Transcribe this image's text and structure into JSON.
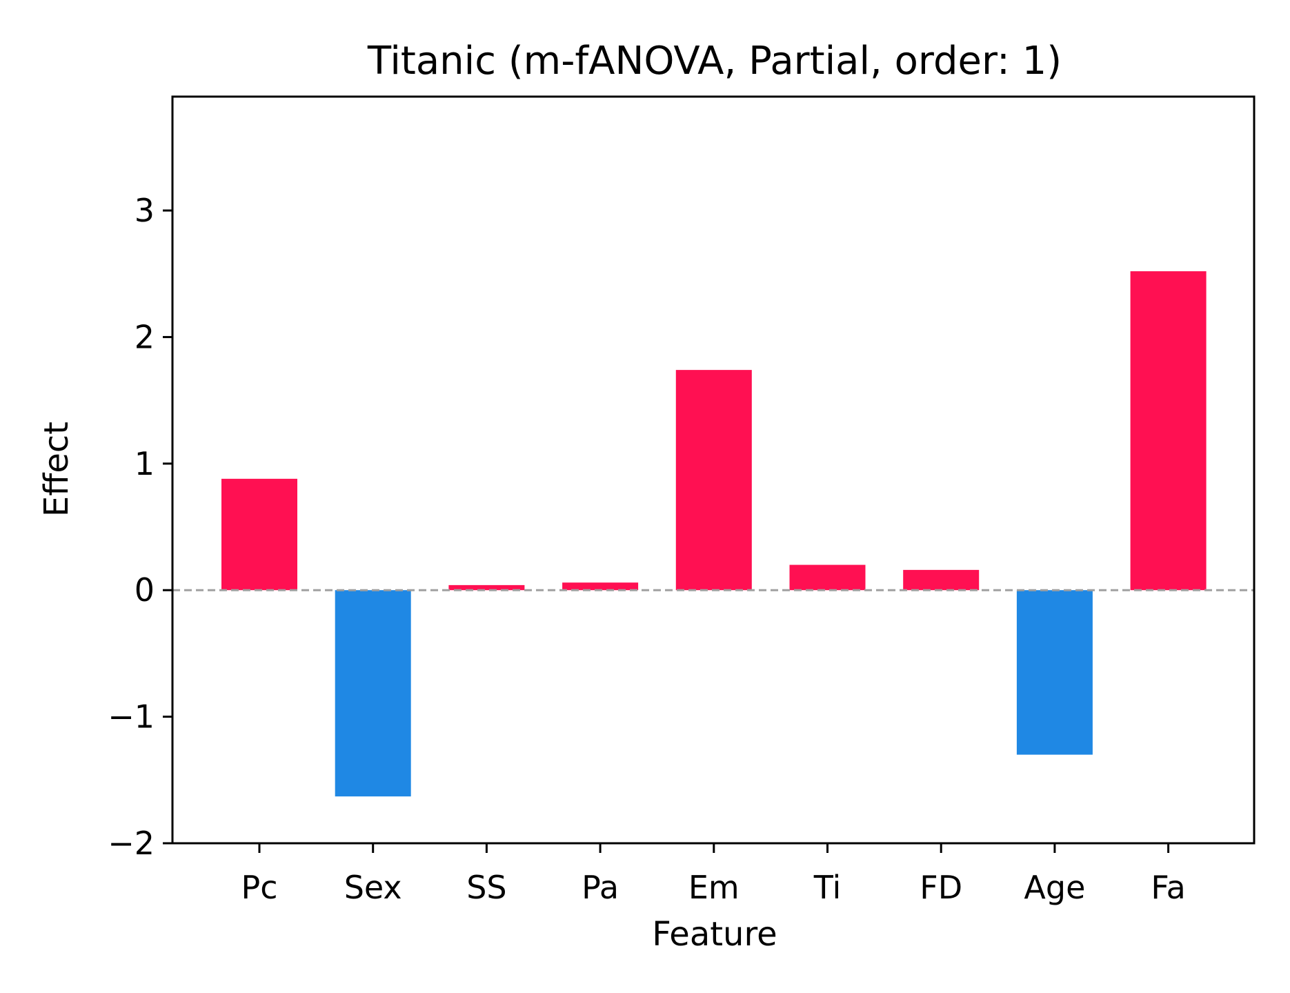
{
  "chart_data": {
    "type": "bar",
    "title": "Titanic (m-fANOVA, Partial, order: 1)",
    "xlabel": "Feature",
    "ylabel": "Effect",
    "categories": [
      "Pc",
      "Sex",
      "SS",
      "Pa",
      "Em",
      "Ti",
      "FD",
      "Age",
      "Fa"
    ],
    "values": [
      0.88,
      -1.63,
      0.04,
      0.06,
      1.74,
      0.2,
      0.16,
      -1.3,
      2.52
    ],
    "ylim": [
      -2,
      3.9
    ],
    "yticks": [
      -2,
      -1,
      0,
      1,
      2,
      3
    ],
    "ytick_labels": [
      "−2",
      "−1",
      "0",
      "1",
      "2",
      "3"
    ],
    "zero_line": "dashed",
    "grid": false,
    "colors": {
      "positive": "#ff1052",
      "negative": "#1f88e4",
      "zero_line": "#a0a0a0",
      "axes": "#000000"
    }
  }
}
